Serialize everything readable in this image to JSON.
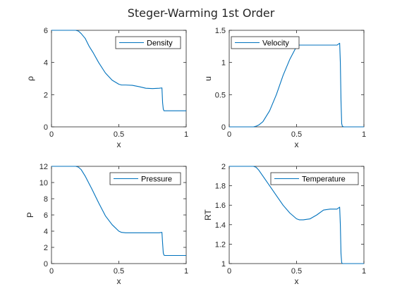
{
  "figure": {
    "title": "Steger-Warming 1st Order",
    "line_color": "#0072BD"
  },
  "chart_data": [
    {
      "type": "line",
      "xlabel": "x",
      "ylabel": "ρ",
      "xlim": [
        0,
        1
      ],
      "ylim": [
        0,
        6
      ],
      "xticks": [
        "0",
        "0.5",
        "1"
      ],
      "yticks": [
        "0",
        "2",
        "4",
        "6"
      ],
      "legend": {
        "position": "top-right"
      },
      "series": [
        {
          "name": "Density",
          "x": [
            0,
            0.18,
            0.2,
            0.22,
            0.25,
            0.28,
            0.31,
            0.35,
            0.4,
            0.45,
            0.5,
            0.52,
            0.55,
            0.6,
            0.65,
            0.7,
            0.75,
            0.8,
            0.82,
            0.825,
            0.83,
            0.835,
            0.84,
            1.0
          ],
          "y": [
            6.0,
            6.0,
            5.95,
            5.8,
            5.5,
            5.0,
            4.6,
            4.0,
            3.35,
            2.9,
            2.65,
            2.6,
            2.6,
            2.58,
            2.5,
            2.4,
            2.38,
            2.4,
            2.42,
            1.5,
            1.1,
            1.0,
            1.0,
            1.0
          ]
        }
      ]
    },
    {
      "type": "line",
      "xlabel": "x",
      "ylabel": "u",
      "xlim": [
        0,
        1
      ],
      "ylim": [
        0,
        1.5
      ],
      "xticks": [
        "0",
        "0.5",
        "1"
      ],
      "yticks": [
        "0",
        "0.5",
        "1",
        "1.5"
      ],
      "legend": {
        "position": "top-left"
      },
      "series": [
        {
          "name": "Velocity",
          "x": [
            0,
            0.18,
            0.2,
            0.22,
            0.25,
            0.3,
            0.35,
            0.4,
            0.45,
            0.5,
            0.52,
            0.55,
            0.6,
            0.7,
            0.8,
            0.82,
            0.825,
            0.83,
            0.835,
            0.84,
            0.85,
            1.0
          ],
          "y": [
            0,
            0,
            0.01,
            0.03,
            0.08,
            0.25,
            0.5,
            0.8,
            1.05,
            1.25,
            1.27,
            1.27,
            1.27,
            1.27,
            1.27,
            1.3,
            1.0,
            0.4,
            0.05,
            0.01,
            0,
            0
          ]
        }
      ]
    },
    {
      "type": "line",
      "xlabel": "x",
      "ylabel": "P",
      "xlim": [
        0,
        1
      ],
      "ylim": [
        0,
        12
      ],
      "xticks": [
        "0",
        "0.5",
        "1"
      ],
      "yticks": [
        "0",
        "2",
        "4",
        "6",
        "8",
        "10",
        "12"
      ],
      "legend": {
        "position": "top-right"
      },
      "series": [
        {
          "name": "Pressure",
          "x": [
            0,
            0.18,
            0.2,
            0.22,
            0.25,
            0.3,
            0.35,
            0.4,
            0.45,
            0.5,
            0.52,
            0.55,
            0.6,
            0.7,
            0.8,
            0.82,
            0.825,
            0.83,
            0.835,
            0.84,
            1.0
          ],
          "y": [
            12,
            12,
            11.9,
            11.6,
            10.8,
            9.2,
            7.5,
            5.9,
            4.8,
            4.0,
            3.85,
            3.8,
            3.8,
            3.8,
            3.8,
            3.85,
            2.5,
            1.3,
            1.05,
            1.0,
            1.0
          ]
        }
      ]
    },
    {
      "type": "line",
      "xlabel": "x",
      "ylabel": "RT",
      "xlim": [
        0,
        1
      ],
      "ylim": [
        1,
        2
      ],
      "xticks": [
        "0",
        "0.5",
        "1"
      ],
      "yticks": [
        "1",
        "1.2",
        "1.4",
        "1.6",
        "1.8",
        "2"
      ],
      "legend": {
        "position": "top-right"
      },
      "series": [
        {
          "name": "Temperature",
          "x": [
            0,
            0.18,
            0.2,
            0.22,
            0.25,
            0.3,
            0.35,
            0.4,
            0.45,
            0.5,
            0.52,
            0.55,
            0.6,
            0.65,
            0.7,
            0.75,
            0.8,
            0.82,
            0.825,
            0.83,
            0.835,
            0.84,
            1.0
          ],
          "y": [
            2.0,
            2.0,
            1.99,
            1.96,
            1.9,
            1.8,
            1.7,
            1.6,
            1.52,
            1.46,
            1.45,
            1.45,
            1.46,
            1.5,
            1.55,
            1.56,
            1.56,
            1.58,
            1.4,
            1.1,
            1.01,
            1.0,
            1.0
          ]
        }
      ]
    }
  ]
}
